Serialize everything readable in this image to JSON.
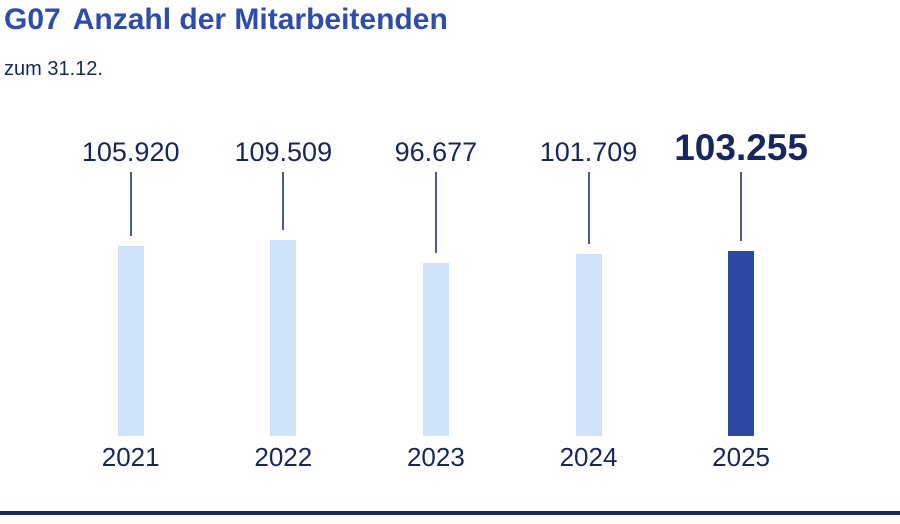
{
  "header": {
    "code": "G07",
    "title": "Anzahl der Mitarbeitenden",
    "subtitle": "zum 31.12."
  },
  "chart_data": {
    "type": "bar",
    "title": "G07 Anzahl der Mitarbeitenden",
    "subtitle": "zum 31.12.",
    "categories": [
      "2021",
      "2022",
      "2023",
      "2024",
      "2025"
    ],
    "values": [
      105920,
      109509,
      96677,
      101709,
      103255
    ],
    "value_labels": [
      "105.920",
      "109.509",
      "96.677",
      "101.709",
      "103.255"
    ],
    "highlight_index": 4,
    "xlabel": "",
    "ylabel": "",
    "ylim": [
      0,
      115000
    ],
    "grid": false,
    "legend": "none",
    "colors": {
      "title_color": "#2e4cab",
      "text_color": "#17265c",
      "bar_default": "#cfe3fb",
      "bar_highlight": "#2c49a5",
      "connector": "#4c5c86",
      "rule": "#1b2a5e"
    }
  }
}
